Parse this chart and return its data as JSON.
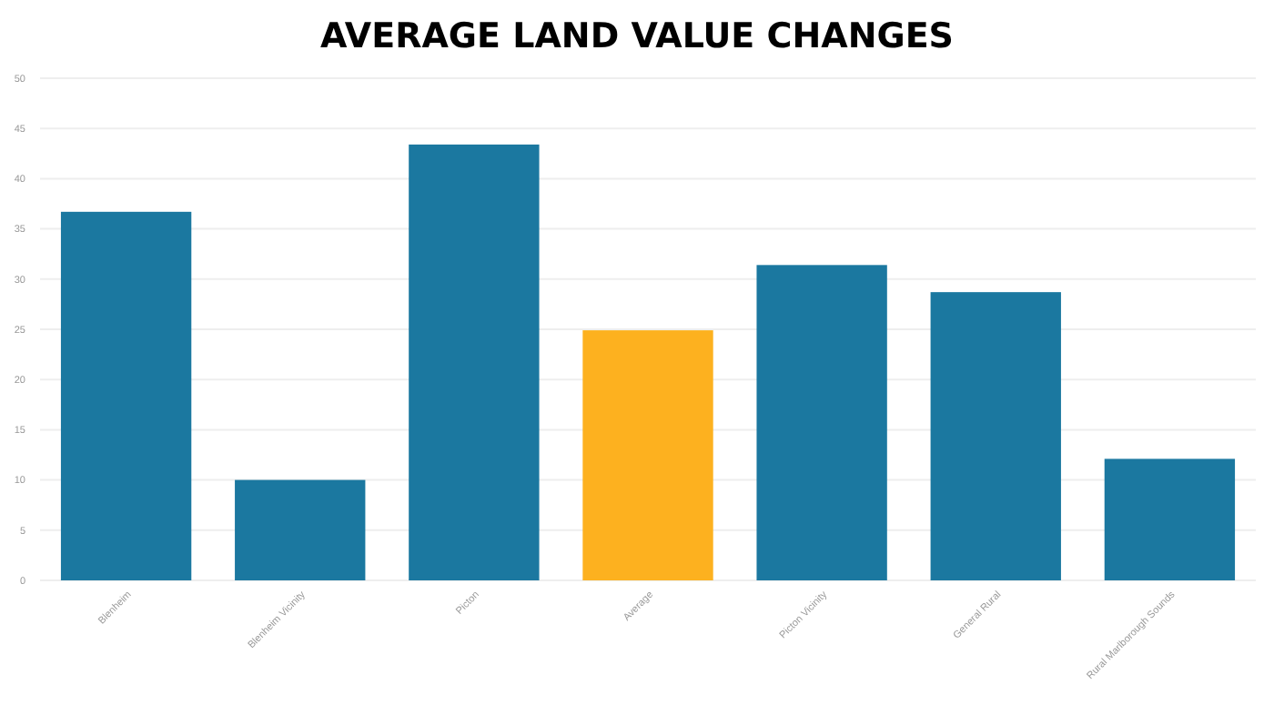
{
  "chart_data": {
    "type": "bar",
    "title": "AVERAGE LAND VALUE CHANGES",
    "categories": [
      "Blenheim",
      "Blenheim Vicinity",
      "Picton",
      "Average",
      "Picton Vicinity",
      "General Rural",
      "Rural Marlborough Sounds"
    ],
    "values": [
      36.7,
      10,
      43.4,
      24.9,
      31.4,
      28.7,
      12.1
    ],
    "colors": [
      "#1b78a0",
      "#1b78a0",
      "#1b78a0",
      "#fdb11f",
      "#1b78a0",
      "#1b78a0",
      "#1b78a0"
    ],
    "ylim": [
      0,
      50
    ],
    "yticks": [
      0,
      5,
      10,
      15,
      20,
      25,
      30,
      35,
      40,
      45,
      50
    ],
    "grid": "y"
  }
}
